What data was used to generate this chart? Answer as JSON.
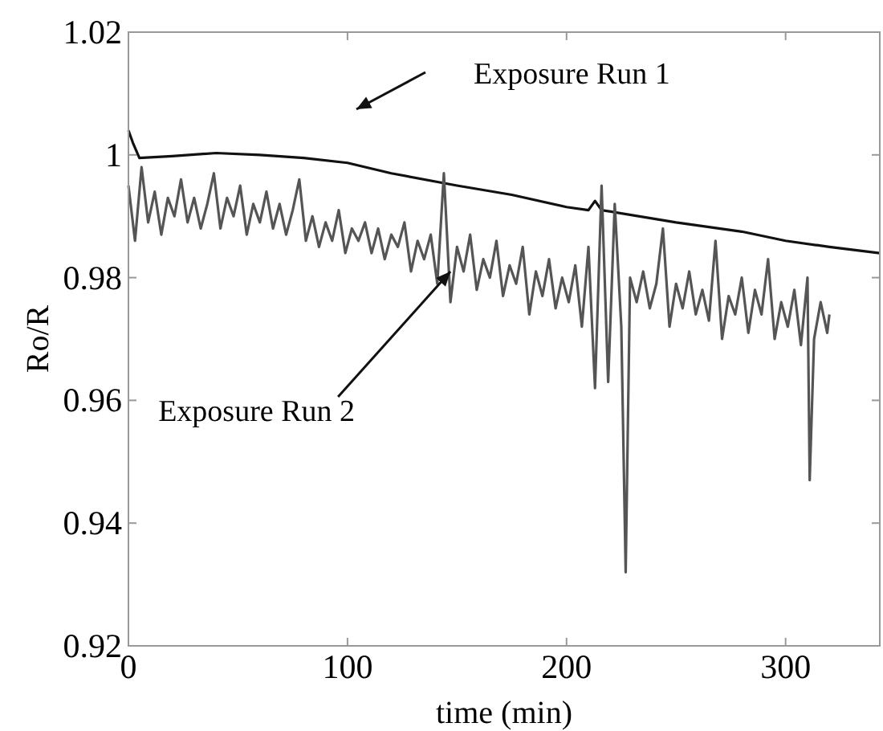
{
  "chart_data": {
    "type": "line",
    "xlabel": "time (min)",
    "ylabel": "Ro/R",
    "xlim": [
      0,
      343
    ],
    "ylim": [
      0.92,
      1.02
    ],
    "xticks": [
      0,
      100,
      200,
      300
    ],
    "yticks": [
      {
        "value": 0.92,
        "label": "0.92"
      },
      {
        "value": 0.94,
        "label": "0.94"
      },
      {
        "value": 0.96,
        "label": "0.96"
      },
      {
        "value": 0.98,
        "label": "0.98"
      },
      {
        "value": 1,
        "label": "1"
      },
      {
        "value": 1.02,
        "label": "1.02"
      }
    ],
    "grid": false,
    "marker": "none",
    "line_style": "solid",
    "annotations": [
      "Exposure Run 1",
      {
        "text": "Exposure Run 2",
        "x": 147,
        "y": 0.981
      }
    ],
    "series": [
      {
        "color": "#111111",
        "x": [
          0,
          2,
          5,
          20,
          40,
          60,
          80,
          100,
          120,
          150,
          175,
          200,
          210,
          213,
          216,
          250,
          280,
          300,
          320,
          343
        ],
        "values": [
          1.004,
          1.002,
          0.9995,
          0.9998,
          1.0003,
          1.0,
          0.9995,
          0.9987,
          0.997,
          0.995,
          0.9935,
          0.9915,
          0.991,
          0.9925,
          0.991,
          0.989,
          0.9875,
          0.986,
          0.985,
          0.984
        ]
      },
      {
        "color": "#555555",
        "x": [
          0,
          3,
          6,
          9,
          12,
          15,
          18,
          21,
          24,
          27,
          30,
          33,
          36,
          39,
          42,
          45,
          48,
          51,
          54,
          57,
          60,
          63,
          66,
          69,
          72,
          75,
          78,
          81,
          84,
          87,
          90,
          93,
          96,
          99,
          102,
          105,
          108,
          111,
          114,
          117,
          120,
          123,
          126,
          129,
          132,
          135,
          138,
          141,
          144,
          147,
          150,
          153,
          156,
          159,
          162,
          165,
          168,
          171,
          174,
          177,
          180,
          183,
          186,
          189,
          192,
          195,
          198,
          201,
          204,
          207,
          210,
          213,
          216,
          219,
          222,
          225,
          227,
          229,
          232,
          235,
          238,
          241,
          244,
          247,
          250,
          253,
          256,
          259,
          262,
          265,
          268,
          271,
          274,
          277,
          280,
          283,
          286,
          289,
          292,
          295,
          298,
          301,
          304,
          307,
          310,
          311,
          313,
          316,
          319,
          320
        ],
        "values": [
          0.995,
          0.986,
          0.998,
          0.989,
          0.994,
          0.987,
          0.993,
          0.99,
          0.996,
          0.989,
          0.993,
          0.988,
          0.992,
          0.997,
          0.988,
          0.993,
          0.99,
          0.995,
          0.987,
          0.992,
          0.989,
          0.994,
          0.988,
          0.992,
          0.987,
          0.991,
          0.996,
          0.986,
          0.99,
          0.985,
          0.989,
          0.986,
          0.991,
          0.984,
          0.988,
          0.986,
          0.989,
          0.984,
          0.988,
          0.983,
          0.987,
          0.985,
          0.989,
          0.981,
          0.986,
          0.983,
          0.987,
          0.979,
          0.997,
          0.976,
          0.985,
          0.981,
          0.987,
          0.978,
          0.983,
          0.98,
          0.986,
          0.977,
          0.982,
          0.979,
          0.985,
          0.974,
          0.981,
          0.977,
          0.983,
          0.975,
          0.98,
          0.976,
          0.982,
          0.972,
          0.985,
          0.962,
          0.995,
          0.963,
          0.992,
          0.972,
          0.932,
          0.98,
          0.976,
          0.981,
          0.975,
          0.979,
          0.988,
          0.972,
          0.979,
          0.975,
          0.981,
          0.974,
          0.978,
          0.973,
          0.986,
          0.97,
          0.977,
          0.974,
          0.98,
          0.971,
          0.978,
          0.974,
          0.983,
          0.97,
          0.976,
          0.972,
          0.978,
          0.969,
          0.98,
          0.947,
          0.97,
          0.976,
          0.971,
          0.974
        ]
      }
    ]
  }
}
